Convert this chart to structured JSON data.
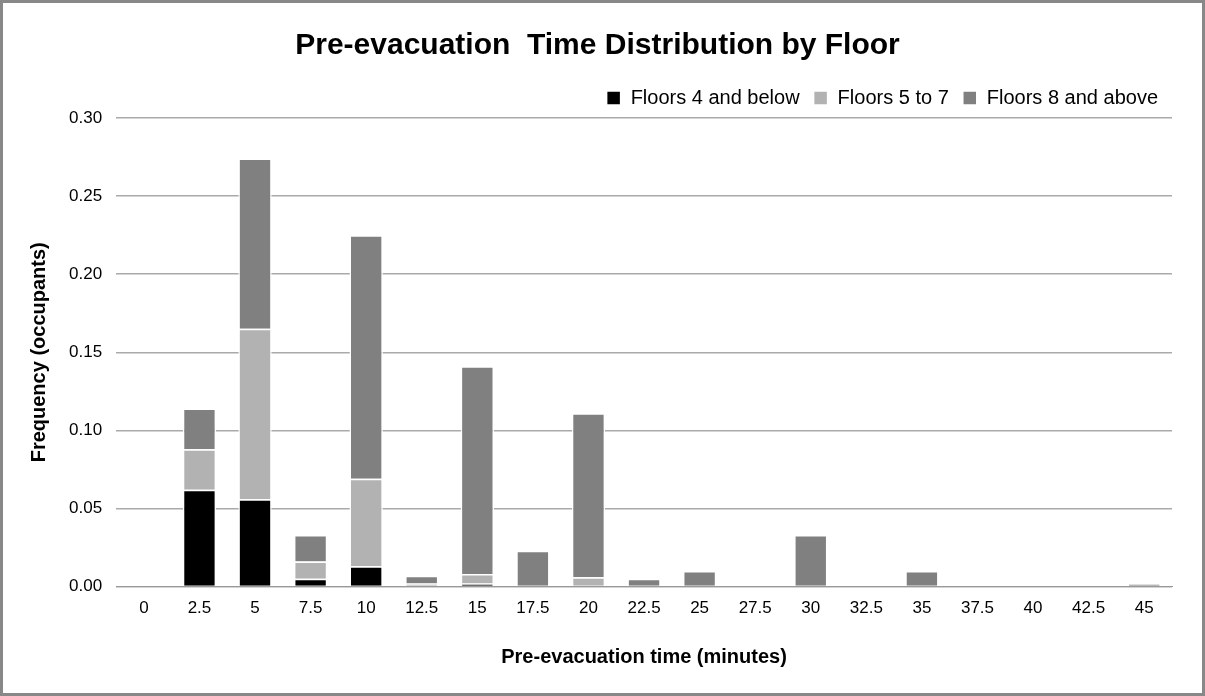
{
  "chart_data": {
    "type": "bar",
    "title": "Pre-evacuation  Time Distribution by Floor",
    "xlabel": "Pre-evacuation time (minutes)",
    "ylabel": "Frequency (occupants)",
    "categories": [
      "0",
      "2.5",
      "5",
      "7.5",
      "10",
      "12.5",
      "15",
      "17.5",
      "20",
      "22.5",
      "25",
      "27.5",
      "30",
      "32.5",
      "35",
      "37.5",
      "40",
      "42.5",
      "45"
    ],
    "series": [
      {
        "name": "Floors 4 and below",
        "color": "#000000",
        "values": [
          0,
          0.062,
          0.056,
          0.005,
          0.013,
          0,
          0.002,
          0,
          0,
          0,
          0,
          0,
          0,
          0,
          0,
          0,
          0,
          0,
          0
        ]
      },
      {
        "name": "Floors 5 to 7",
        "color": "#b2b2b2",
        "values": [
          0,
          0.026,
          0.109,
          0.011,
          0.056,
          0.002,
          0.006,
          0,
          0.006,
          0,
          0,
          0,
          0,
          0,
          0,
          0,
          0,
          0,
          0
        ]
      },
      {
        "name": "Floors 8 and above",
        "color": "#808080",
        "values": [
          0,
          0.026,
          0.109,
          0.017,
          0.156,
          0.005,
          0.133,
          0.023,
          0.105,
          0.005,
          0.01,
          0,
          0.033,
          0,
          0.01,
          0,
          0,
          0,
          0.002
        ]
      }
    ],
    "stacked": true,
    "ylim": [
      0,
      0.3
    ],
    "yticks": [
      {
        "value": 0,
        "label": "0.00"
      },
      {
        "value": 0.05,
        "label": "0.05"
      },
      {
        "value": 0.1,
        "label": "0.10"
      },
      {
        "value": 0.15,
        "label": "0.15"
      },
      {
        "value": 0.2,
        "label": "0.20"
      },
      {
        "value": 0.25,
        "label": "0.25"
      },
      {
        "value": 0.3,
        "label": "0.30"
      }
    ],
    "grid": "y",
    "legend": "top right"
  }
}
